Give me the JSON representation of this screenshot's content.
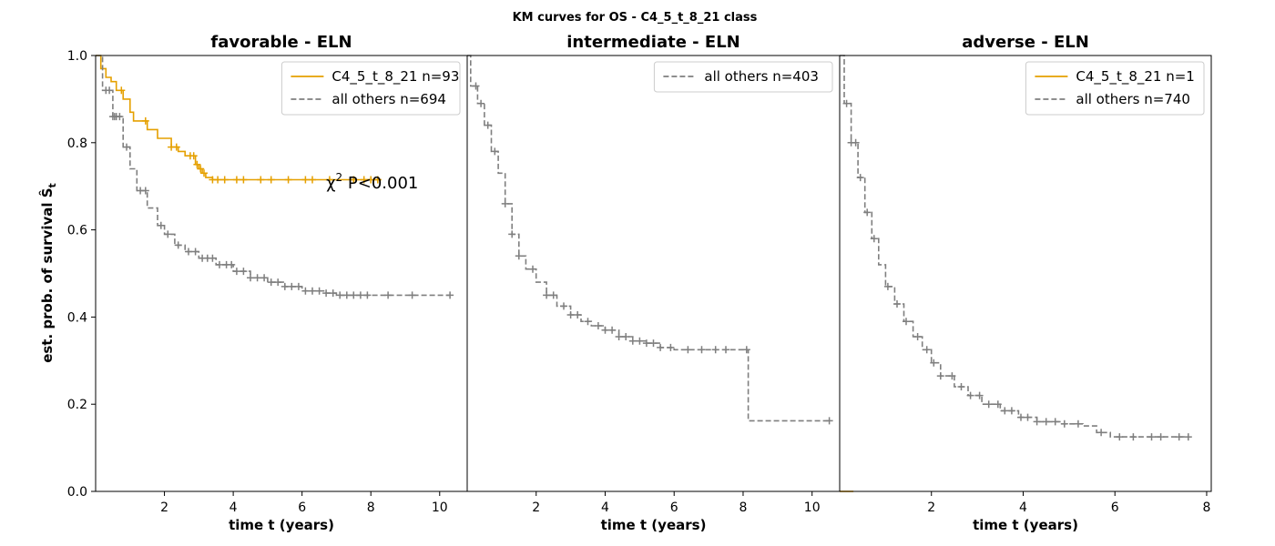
{
  "figure_title": "KM curves for OS - C4_5_t_8_21 class",
  "y_axis_label": "est. prob. of survival Ŝ",
  "y_axis_label_sub": "t",
  "colors": {
    "class": "#e5a000",
    "others": "#7f7f7f"
  },
  "chart_data": [
    {
      "type": "line",
      "title": "favorable - ELN",
      "xlabel": "time t (years)",
      "ylabel": "est. prob. of survival",
      "xlim": [
        0,
        10.8
      ],
      "ylim": [
        0,
        1
      ],
      "xticks": [
        2,
        4,
        6,
        8,
        10
      ],
      "yticks": [
        0.0,
        0.2,
        0.4,
        0.6,
        0.8,
        1.0
      ],
      "ytick_labels": [
        "0.0",
        "0.2",
        "0.4",
        "0.6",
        "0.8",
        "1.0"
      ],
      "legend_position": "top-right",
      "annotation": {
        "prefix": "χ",
        "sup": "2",
        "text": " P<0.001",
        "x": 6.7,
        "y": 0.71
      },
      "series": [
        {
          "name": "C4_5_t_8_21 n=93",
          "style": "solid",
          "color_key": "class",
          "points": [
            [
              0,
              1.0
            ],
            [
              0.15,
              0.97
            ],
            [
              0.3,
              0.95
            ],
            [
              0.45,
              0.94
            ],
            [
              0.6,
              0.92
            ],
            [
              0.8,
              0.9
            ],
            [
              1.0,
              0.87
            ],
            [
              1.1,
              0.85
            ],
            [
              1.5,
              0.83
            ],
            [
              1.8,
              0.81
            ],
            [
              2.2,
              0.79
            ],
            [
              2.4,
              0.78
            ],
            [
              2.6,
              0.77
            ],
            [
              2.9,
              0.75
            ],
            [
              3.0,
              0.74
            ],
            [
              3.1,
              0.73
            ],
            [
              3.2,
              0.72
            ],
            [
              3.4,
              0.715
            ],
            [
              8.3,
              0.715
            ]
          ],
          "censor": [
            0.75,
            1.45,
            2.2,
            2.35,
            2.75,
            2.85,
            2.95,
            3.05,
            3.15,
            3.4,
            3.55,
            3.75,
            4.1,
            4.3,
            4.8,
            5.1,
            5.6,
            6.1,
            6.3,
            6.8,
            7.5,
            7.8,
            8.0,
            8.2
          ]
        },
        {
          "name": "all others n=694",
          "style": "dashed",
          "color_key": "others",
          "points": [
            [
              0,
              1.0
            ],
            [
              0.2,
              0.92
            ],
            [
              0.5,
              0.86
            ],
            [
              0.8,
              0.79
            ],
            [
              1.0,
              0.74
            ],
            [
              1.2,
              0.69
            ],
            [
              1.5,
              0.65
            ],
            [
              1.8,
              0.61
            ],
            [
              2.0,
              0.59
            ],
            [
              2.3,
              0.565
            ],
            [
              2.6,
              0.55
            ],
            [
              3.0,
              0.535
            ],
            [
              3.5,
              0.52
            ],
            [
              4.0,
              0.505
            ],
            [
              4.5,
              0.49
            ],
            [
              5.0,
              0.48
            ],
            [
              5.5,
              0.47
            ],
            [
              6.0,
              0.46
            ],
            [
              6.7,
              0.455
            ],
            [
              7.0,
              0.45
            ],
            [
              10.3,
              0.45
            ]
          ],
          "censor": [
            0.3,
            0.4,
            0.5,
            0.55,
            0.6,
            0.7,
            0.9,
            1.3,
            1.45,
            1.9,
            2.1,
            2.4,
            2.7,
            2.9,
            3.1,
            3.25,
            3.4,
            3.6,
            3.8,
            3.95,
            4.1,
            4.3,
            4.5,
            4.7,
            4.9,
            5.1,
            5.3,
            5.5,
            5.7,
            5.9,
            6.1,
            6.3,
            6.5,
            6.7,
            6.9,
            7.1,
            7.3,
            7.5,
            7.7,
            7.9,
            8.5,
            9.2,
            10.3
          ]
        }
      ]
    },
    {
      "type": "line",
      "title": "intermediate - ELN",
      "xlabel": "time t (years)",
      "ylabel": "",
      "xlim": [
        0,
        10.8
      ],
      "ylim": [
        0,
        1
      ],
      "xticks": [
        2,
        4,
        6,
        8,
        10
      ],
      "legend_position": "top-right",
      "series": [
        {
          "name": "all others n=403",
          "style": "dashed",
          "color_key": "others",
          "points": [
            [
              0,
              1.0
            ],
            [
              0.1,
              0.93
            ],
            [
              0.3,
              0.89
            ],
            [
              0.5,
              0.84
            ],
            [
              0.7,
              0.78
            ],
            [
              0.9,
              0.73
            ],
            [
              1.1,
              0.66
            ],
            [
              1.3,
              0.59
            ],
            [
              1.5,
              0.54
            ],
            [
              1.7,
              0.51
            ],
            [
              2.0,
              0.48
            ],
            [
              2.3,
              0.45
            ],
            [
              2.6,
              0.425
            ],
            [
              3.0,
              0.405
            ],
            [
              3.3,
              0.39
            ],
            [
              3.6,
              0.38
            ],
            [
              4.0,
              0.37
            ],
            [
              4.4,
              0.355
            ],
            [
              4.8,
              0.345
            ],
            [
              5.2,
              0.34
            ],
            [
              5.6,
              0.33
            ],
            [
              6.0,
              0.325
            ],
            [
              8.15,
              0.325
            ],
            [
              8.15,
              0.162
            ],
            [
              10.5,
              0.162
            ]
          ],
          "censor": [
            0.25,
            0.4,
            0.6,
            0.8,
            1.1,
            1.3,
            1.5,
            1.9,
            2.3,
            2.5,
            2.8,
            3.0,
            3.2,
            3.5,
            3.8,
            4.0,
            4.2,
            4.4,
            4.6,
            4.8,
            5.0,
            5.2,
            5.4,
            5.6,
            5.9,
            6.4,
            6.8,
            7.2,
            7.5,
            8.1,
            10.5
          ]
        }
      ]
    },
    {
      "type": "line",
      "title": "adverse - ELN",
      "xlabel": "time t (years)",
      "ylabel": "",
      "xlim": [
        0,
        8.1
      ],
      "ylim": [
        0,
        1
      ],
      "xticks": [
        2,
        4,
        6,
        8
      ],
      "legend_position": "top-right",
      "series": [
        {
          "name": "C4_5_t_8_21 n=1",
          "style": "solid",
          "color_key": "class",
          "points": [
            [
              0,
              0.0
            ],
            [
              0.3,
              0.0
            ]
          ],
          "censor": []
        },
        {
          "name": "all others n=740",
          "style": "dashed",
          "color_key": "others",
          "points": [
            [
              0,
              1.0
            ],
            [
              0.1,
              0.89
            ],
            [
              0.25,
              0.8
            ],
            [
              0.4,
              0.72
            ],
            [
              0.55,
              0.64
            ],
            [
              0.7,
              0.58
            ],
            [
              0.85,
              0.52
            ],
            [
              1.0,
              0.47
            ],
            [
              1.2,
              0.43
            ],
            [
              1.4,
              0.39
            ],
            [
              1.6,
              0.355
            ],
            [
              1.8,
              0.325
            ],
            [
              2.0,
              0.295
            ],
            [
              2.2,
              0.265
            ],
            [
              2.5,
              0.24
            ],
            [
              2.8,
              0.22
            ],
            [
              3.1,
              0.2
            ],
            [
              3.5,
              0.185
            ],
            [
              3.9,
              0.17
            ],
            [
              4.3,
              0.16
            ],
            [
              4.8,
              0.155
            ],
            [
              5.3,
              0.15
            ],
            [
              5.6,
              0.135
            ],
            [
              5.9,
              0.125
            ],
            [
              7.6,
              0.125
            ]
          ],
          "censor": [
            0.15,
            0.25,
            0.35,
            0.45,
            0.6,
            0.75,
            1.05,
            1.25,
            1.45,
            1.7,
            1.9,
            2.05,
            2.2,
            2.45,
            2.65,
            2.85,
            3.05,
            3.25,
            3.45,
            3.6,
            3.75,
            3.95,
            4.1,
            4.3,
            4.5,
            4.7,
            4.9,
            5.2,
            5.7,
            6.1,
            6.4,
            6.8,
            7.0,
            7.4,
            7.6
          ]
        }
      ]
    }
  ]
}
